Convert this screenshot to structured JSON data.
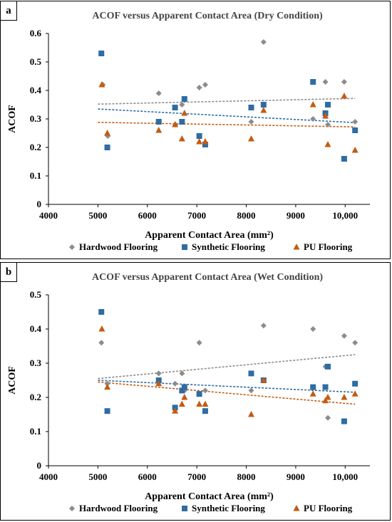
{
  "chart_data": [
    {
      "panel": "a",
      "type": "scatter",
      "title": "ACOF versus Apparent Contact Area (Dry Condition)",
      "xlabel": "Apparent Contact Area (mm²)",
      "ylabel": "ACOF",
      "xlim": [
        4000,
        10500
      ],
      "ylim": [
        0,
        0.6
      ],
      "x_ticks": [
        4000,
        5000,
        6000,
        7000,
        8000,
        9000,
        10000
      ],
      "x_tick_labels": [
        "4000",
        "5000",
        "6000",
        "7000",
        "8000",
        "9000",
        "10,000"
      ],
      "y_ticks": [
        0,
        0.1,
        0.2,
        0.3,
        0.4,
        0.5,
        0.6
      ],
      "y_tick_labels": [
        "0",
        "0.1",
        "0.2",
        "0.3",
        "0.4",
        "0.5",
        "0.6"
      ],
      "legend_position": "bottom",
      "grid": false,
      "series": [
        {
          "name": "Hardwood Flooring",
          "color": "#8c8c8c",
          "marker": "diamond",
          "trendline": [
            [
              5000,
              0.352
            ],
            [
              10200,
              0.372
            ]
          ],
          "points": [
            [
              5100,
              0.42
            ],
            [
              5200,
              0.24
            ],
            [
              6230,
              0.39
            ],
            [
              6570,
              0.28
            ],
            [
              6700,
              0.35
            ],
            [
              7050,
              0.41
            ],
            [
              7170,
              0.42
            ],
            [
              8100,
              0.29
            ],
            [
              8350,
              0.57
            ],
            [
              9350,
              0.3
            ],
            [
              9600,
              0.43
            ],
            [
              9650,
              0.28
            ],
            [
              9980,
              0.43
            ],
            [
              10200,
              0.29
            ]
          ]
        },
        {
          "name": "Synthetic Flooring",
          "color": "#2e6ca4",
          "marker": "square",
          "trendline": [
            [
              5000,
              0.335
            ],
            [
              10200,
              0.287
            ]
          ],
          "points": [
            [
              5070,
              0.53
            ],
            [
              5190,
              0.2
            ],
            [
              6230,
              0.29
            ],
            [
              6560,
              0.34
            ],
            [
              6700,
              0.29
            ],
            [
              6750,
              0.37
            ],
            [
              7050,
              0.24
            ],
            [
              7170,
              0.21
            ],
            [
              8100,
              0.34
            ],
            [
              8350,
              0.35
            ],
            [
              9350,
              0.43
            ],
            [
              9600,
              0.32
            ],
            [
              9650,
              0.35
            ],
            [
              9980,
              0.16
            ],
            [
              10200,
              0.26
            ]
          ]
        },
        {
          "name": "PU Flooring",
          "color": "#c55a11",
          "marker": "triangle",
          "trendline": [
            [
              5000,
              0.288
            ],
            [
              10200,
              0.272
            ]
          ],
          "points": [
            [
              5080,
              0.42
            ],
            [
              5190,
              0.25
            ],
            [
              6230,
              0.26
            ],
            [
              6560,
              0.28
            ],
            [
              6700,
              0.23
            ],
            [
              6750,
              0.32
            ],
            [
              7050,
              0.22
            ],
            [
              7170,
              0.22
            ],
            [
              8100,
              0.23
            ],
            [
              8350,
              0.33
            ],
            [
              9350,
              0.35
            ],
            [
              9600,
              0.31
            ],
            [
              9650,
              0.21
            ],
            [
              9980,
              0.38
            ],
            [
              10200,
              0.19
            ]
          ]
        }
      ]
    },
    {
      "panel": "b",
      "type": "scatter",
      "title": "ACOF versus Apparent Contact Area (Wet Condition)",
      "xlabel": "Apparent Contact Area (mm²)",
      "ylabel": "ACOF",
      "xlim": [
        4000,
        10500
      ],
      "ylim": [
        0,
        0.5
      ],
      "x_ticks": [
        4000,
        5000,
        6000,
        7000,
        8000,
        9000,
        10000
      ],
      "x_tick_labels": [
        "4000",
        "5000",
        "6000",
        "7000",
        "8000",
        "9000",
        "10,000"
      ],
      "y_ticks": [
        0,
        0.1,
        0.2,
        0.3,
        0.4,
        0.5
      ],
      "y_tick_labels": [
        "0",
        "0.1",
        "0.2",
        "0.3",
        "0.4",
        "0.5"
      ],
      "legend_position": "bottom",
      "grid": false,
      "series": [
        {
          "name": "Hardwood Flooring",
          "color": "#8c8c8c",
          "marker": "diamond",
          "trendline": [
            [
              5000,
              0.255
            ],
            [
              10200,
              0.325
            ]
          ],
          "points": [
            [
              5070,
              0.36
            ],
            [
              5190,
              0.24
            ],
            [
              6230,
              0.27
            ],
            [
              6560,
              0.24
            ],
            [
              6700,
              0.27
            ],
            [
              6750,
              0.22
            ],
            [
              7050,
              0.36
            ],
            [
              7170,
              0.22
            ],
            [
              8100,
              0.22
            ],
            [
              8350,
              0.41
            ],
            [
              9350,
              0.4
            ],
            [
              9600,
              0.29
            ],
            [
              9650,
              0.14
            ],
            [
              9980,
              0.38
            ],
            [
              10200,
              0.36
            ]
          ]
        },
        {
          "name": "Synthetic Flooring",
          "color": "#2e6ca4",
          "marker": "square",
          "trendline": [
            [
              5000,
              0.25
            ],
            [
              10200,
              0.215
            ]
          ],
          "points": [
            [
              5070,
              0.45
            ],
            [
              5190,
              0.16
            ],
            [
              6230,
              0.25
            ],
            [
              6560,
              0.17
            ],
            [
              6700,
              0.22
            ],
            [
              6750,
              0.23
            ],
            [
              7050,
              0.21
            ],
            [
              7170,
              0.16
            ],
            [
              8100,
              0.27
            ],
            [
              8350,
              0.25
            ],
            [
              9350,
              0.23
            ],
            [
              9600,
              0.23
            ],
            [
              9650,
              0.29
            ],
            [
              9980,
              0.13
            ],
            [
              10200,
              0.24
            ]
          ]
        },
        {
          "name": "PU Flooring",
          "color": "#c55a11",
          "marker": "triangle",
          "trendline": [
            [
              5000,
              0.245
            ],
            [
              10200,
              0.18
            ]
          ],
          "points": [
            [
              5080,
              0.4
            ],
            [
              5190,
              0.23
            ],
            [
              6230,
              0.24
            ],
            [
              6560,
              0.16
            ],
            [
              6700,
              0.18
            ],
            [
              6750,
              0.2
            ],
            [
              7050,
              0.18
            ],
            [
              7170,
              0.18
            ],
            [
              8100,
              0.15
            ],
            [
              8350,
              0.25
            ],
            [
              9350,
              0.21
            ],
            [
              9600,
              0.19
            ],
            [
              9650,
              0.2
            ],
            [
              9980,
              0.2
            ],
            [
              10200,
              0.21
            ]
          ]
        }
      ]
    }
  ]
}
